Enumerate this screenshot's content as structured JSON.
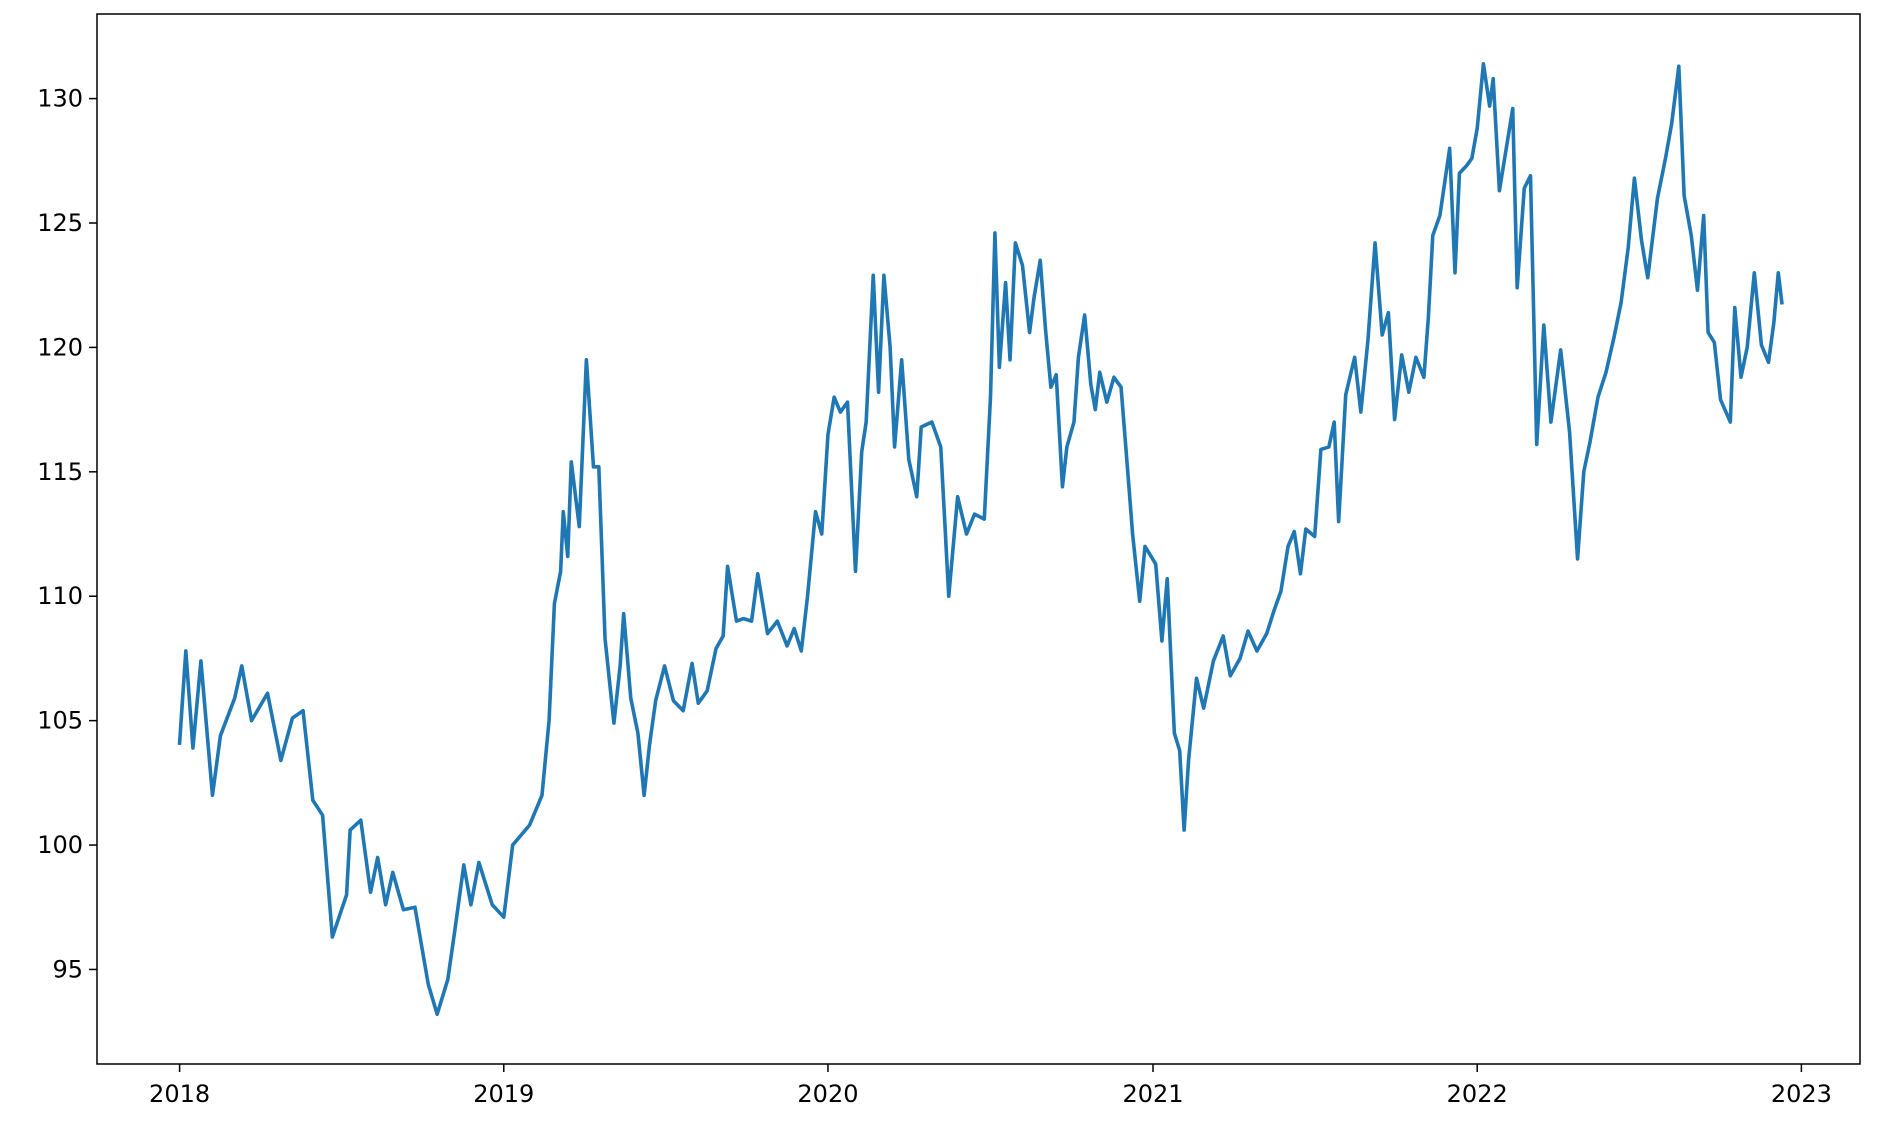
{
  "chart_data": {
    "type": "line",
    "x": [
      "2018-01-01",
      "2018-01-08",
      "2018-01-16",
      "2018-01-25",
      "2018-02-07",
      "2018-02-16",
      "2018-03-04",
      "2018-03-12",
      "2018-03-23",
      "2018-04-10",
      "2018-04-25",
      "2018-05-08",
      "2018-05-20",
      "2018-05-31",
      "2018-06-11",
      "2018-06-22",
      "2018-07-08",
      "2018-07-12",
      "2018-07-24",
      "2018-08-04",
      "2018-08-12",
      "2018-08-21",
      "2018-08-29",
      "2018-09-10",
      "2018-09-23",
      "2018-10-08",
      "2018-10-18",
      "2018-10-30",
      "2018-11-07",
      "2018-11-17",
      "2018-11-25",
      "2018-12-04",
      "2018-12-19",
      "2019-01-01",
      "2019-01-11",
      "2019-01-30",
      "2019-02-13",
      "2019-02-21",
      "2019-02-27",
      "2019-03-06",
      "2019-03-09",
      "2019-03-14",
      "2019-03-18",
      "2019-03-27",
      "2019-04-04",
      "2019-04-12",
      "2019-04-18",
      "2019-04-25",
      "2019-05-05",
      "2019-05-12",
      "2019-05-16",
      "2019-05-24",
      "2019-06-01",
      "2019-06-08",
      "2019-06-14",
      "2019-06-21",
      "2019-07-01",
      "2019-07-11",
      "2019-07-22",
      "2019-08-01",
      "2019-08-08",
      "2019-08-18",
      "2019-08-28",
      "2019-09-05",
      "2019-09-10",
      "2019-09-20",
      "2019-09-28",
      "2019-10-07",
      "2019-10-14",
      "2019-10-25",
      "2019-11-05",
      "2019-11-16",
      "2019-11-24",
      "2019-12-02",
      "2019-12-09",
      "2019-12-18",
      "2019-12-25",
      "2020-01-01",
      "2020-01-08",
      "2020-01-15",
      "2020-01-23",
      "2020-02-01",
      "2020-02-08",
      "2020-02-13",
      "2020-02-21",
      "2020-02-27",
      "2020-03-04",
      "2020-03-11",
      "2020-03-16",
      "2020-03-24",
      "2020-04-01",
      "2020-04-10",
      "2020-04-15",
      "2020-04-27",
      "2020-05-07",
      "2020-05-16",
      "2020-05-26",
      "2020-06-05",
      "2020-06-14",
      "2020-06-25",
      "2020-07-02",
      "2020-07-07",
      "2020-07-12",
      "2020-07-19",
      "2020-07-24",
      "2020-07-30",
      "2020-08-07",
      "2020-08-15",
      "2020-08-20",
      "2020-08-27",
      "2020-09-02",
      "2020-09-08",
      "2020-09-14",
      "2020-09-21",
      "2020-09-26",
      "2020-10-04",
      "2020-10-09",
      "2020-10-16",
      "2020-10-23",
      "2020-10-28",
      "2020-11-02",
      "2020-11-10",
      "2020-11-18",
      "2020-11-26",
      "2020-12-04",
      "2020-12-09",
      "2020-12-17",
      "2020-12-23",
      "2021-01-04",
      "2021-01-11",
      "2021-01-17",
      "2021-01-25",
      "2021-01-31",
      "2021-02-05",
      "2021-02-10",
      "2021-02-19",
      "2021-02-27",
      "2021-03-10",
      "2021-03-21",
      "2021-03-29",
      "2021-04-09",
      "2021-04-18",
      "2021-04-28",
      "2021-05-09",
      "2021-05-17",
      "2021-05-25",
      "2021-06-02",
      "2021-06-09",
      "2021-06-16",
      "2021-06-22",
      "2021-07-02",
      "2021-07-09",
      "2021-07-18",
      "2021-07-24",
      "2021-07-29",
      "2021-08-06",
      "2021-08-16",
      "2021-08-23",
      "2021-08-31",
      "2021-09-08",
      "2021-09-16",
      "2021-09-23",
      "2021-09-30",
      "2021-10-08",
      "2021-10-16",
      "2021-10-24",
      "2021-11-02",
      "2021-11-07",
      "2021-11-12",
      "2021-11-20",
      "2021-12-01",
      "2021-12-07",
      "2021-12-12",
      "2021-12-20",
      "2021-12-26",
      "2022-01-01",
      "2022-01-08",
      "2022-01-15",
      "2022-01-19",
      "2022-01-26",
      "2022-02-10",
      "2022-02-15",
      "2022-02-23",
      "2022-03-02",
      "2022-03-09",
      "2022-03-17",
      "2022-03-25",
      "2022-04-05",
      "2022-04-15",
      "2022-04-24",
      "2022-05-01",
      "2022-05-08",
      "2022-05-17",
      "2022-05-26",
      "2022-06-04",
      "2022-06-12",
      "2022-06-20",
      "2022-06-27",
      "2022-07-05",
      "2022-07-12",
      "2022-07-23",
      "2022-08-01",
      "2022-08-08",
      "2022-08-16",
      "2022-08-22",
      "2022-08-30",
      "2022-09-06",
      "2022-09-13",
      "2022-09-18",
      "2022-09-25",
      "2022-10-02",
      "2022-10-13",
      "2022-10-18",
      "2022-10-25",
      "2022-11-01",
      "2022-11-09",
      "2022-11-17",
      "2022-11-25",
      "2022-12-01",
      "2022-12-06",
      "2022-12-10"
    ],
    "series": [
      {
        "color": "#1f77b4",
        "values": [
          104.1,
          107.8,
          103.9,
          107.4,
          102.0,
          104.4,
          105.9,
          107.2,
          105.0,
          106.1,
          103.4,
          105.1,
          105.4,
          101.8,
          101.2,
          96.3,
          98.0,
          100.6,
          101.0,
          98.1,
          99.5,
          97.6,
          98.9,
          97.4,
          97.5,
          94.4,
          93.2,
          94.6,
          96.6,
          99.2,
          97.6,
          99.3,
          97.6,
          97.1,
          100.0,
          100.8,
          102.0,
          105.0,
          109.7,
          111.0,
          113.4,
          111.6,
          115.4,
          112.8,
          119.5,
          115.2,
          115.2,
          108.3,
          104.9,
          107.2,
          109.3,
          105.9,
          104.5,
          102.0,
          104.0,
          105.8,
          107.2,
          105.8,
          105.4,
          107.3,
          105.7,
          106.2,
          107.9,
          108.4,
          111.2,
          109.0,
          109.1,
          109.0,
          110.9,
          108.5,
          109.0,
          108.0,
          108.7,
          107.8,
          110.0,
          113.4,
          112.5,
          116.5,
          118.0,
          117.4,
          117.8,
          111.0,
          115.8,
          117.0,
          122.9,
          118.2,
          122.9,
          120.0,
          116.0,
          119.5,
          115.5,
          114.0,
          116.8,
          117.0,
          116.0,
          110.0,
          114.0,
          112.5,
          113.3,
          113.1,
          118.0,
          124.6,
          119.2,
          122.6,
          119.5,
          124.2,
          123.3,
          120.6,
          122.0,
          123.5,
          120.7,
          118.4,
          118.9,
          114.4,
          116.0,
          117.0,
          119.6,
          121.3,
          118.5,
          117.5,
          119.0,
          117.8,
          118.8,
          118.4,
          114.8,
          112.5,
          109.8,
          112.0,
          111.3,
          108.2,
          110.7,
          104.5,
          103.8,
          100.6,
          103.4,
          106.7,
          105.5,
          107.4,
          108.4,
          106.8,
          107.5,
          108.6,
          107.8,
          108.5,
          109.4,
          110.2,
          112.0,
          112.6,
          110.9,
          112.7,
          112.4,
          115.9,
          116.0,
          117.0,
          113.0,
          118.1,
          119.6,
          117.4,
          120.3,
          124.2,
          120.5,
          121.4,
          117.1,
          119.7,
          118.2,
          119.6,
          118.8,
          121.2,
          124.5,
          125.3,
          128.0,
          123.0,
          127.0,
          127.3,
          127.6,
          128.8,
          131.4,
          129.7,
          130.8,
          126.3,
          129.6,
          122.4,
          126.4,
          126.9,
          116.1,
          120.9,
          117.0,
          119.9,
          116.6,
          111.5,
          115.0,
          116.2,
          118.0,
          119.0,
          120.4,
          121.8,
          124.0,
          126.8,
          124.3,
          122.8,
          126.0,
          127.6,
          129.0,
          131.3,
          126.1,
          124.5,
          122.3,
          125.3,
          120.6,
          120.2,
          117.9,
          117.0,
          121.6,
          118.8,
          120.0,
          123.0,
          120.1,
          119.4,
          121.0,
          123.0,
          121.8
        ]
      }
    ],
    "xlim": [
      "2017-09-30",
      "2023-03-08"
    ],
    "xticks": [
      {
        "value": "2018-01-01",
        "label": "2018"
      },
      {
        "value": "2019-01-01",
        "label": "2019"
      },
      {
        "value": "2020-01-01",
        "label": "2020"
      },
      {
        "value": "2021-01-01",
        "label": "2021"
      },
      {
        "value": "2022-01-01",
        "label": "2022"
      },
      {
        "value": "2023-01-01",
        "label": "2023"
      }
    ],
    "ylim": [
      91.2,
      133.4
    ],
    "yticks": [
      95,
      100,
      105,
      110,
      115,
      120,
      125,
      130
    ],
    "grid": false
  }
}
